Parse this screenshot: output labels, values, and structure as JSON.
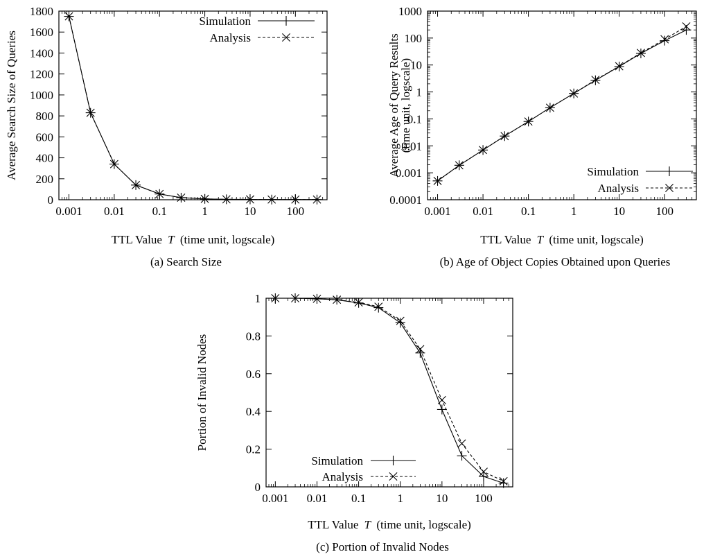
{
  "chart_data": [
    {
      "type": "line",
      "caption": "(a) Search Size",
      "xlabel": "TTL Value  T  (time unit, logscale)",
      "xlabel_parts": [
        "TTL Value ",
        "T",
        " (time unit, logscale)"
      ],
      "ylabel": "Average Search Size of Queries",
      "ylabel_lines": [
        "Average Search Size of Queries"
      ],
      "xscale": "log",
      "yscale": "linear",
      "xlim": [
        0.0006,
        500
      ],
      "ylim": [
        0,
        1800
      ],
      "xticks": [
        0.001,
        0.01,
        0.1,
        1,
        10,
        100
      ],
      "xtick_labels": [
        "0.001",
        "0.01",
        "0.1",
        "1",
        "10",
        "100"
      ],
      "yticks": [
        0,
        200,
        400,
        600,
        800,
        1000,
        1200,
        1400,
        1600,
        1800
      ],
      "ytick_labels": [
        "0",
        "200",
        "400",
        "600",
        "800",
        "1000",
        "1200",
        "1400",
        "1600",
        "1800"
      ],
      "legend_position": "top-right",
      "series": [
        {
          "name": "Simulation",
          "marker": "plus",
          "dash": "solid",
          "x": [
            0.001,
            0.003,
            0.01,
            0.03,
            0.1,
            0.3,
            1,
            3,
            10,
            30,
            100,
            300
          ],
          "y": [
            1750,
            830,
            340,
            140,
            55,
            20,
            8,
            4,
            3,
            2,
            2,
            2
          ]
        },
        {
          "name": "Analysis",
          "marker": "cross",
          "dash": "dashed",
          "x": [
            0.001,
            0.003,
            0.01,
            0.03,
            0.1,
            0.3,
            1,
            3,
            10,
            30,
            100,
            300
          ],
          "y": [
            1750,
            830,
            340,
            140,
            55,
            20,
            8,
            4,
            3,
            2,
            2,
            2
          ]
        }
      ]
    },
    {
      "type": "line",
      "caption": "(b) Age of Object Copies Obtained upon Queries",
      "xlabel": "TTL Value  T  (time unit, logscale)",
      "xlabel_parts": [
        "TTL Value ",
        "T",
        " (time unit, logscale)"
      ],
      "ylabel": "Average Age of Query Results (time unit, logscale)",
      "ylabel_lines": [
        "Average Age of Query Results",
        "(time unit, logscale)"
      ],
      "xscale": "log",
      "yscale": "log",
      "xlim": [
        0.0006,
        500
      ],
      "ylim": [
        0.0001,
        1000
      ],
      "xticks": [
        0.001,
        0.01,
        0.1,
        1,
        10,
        100
      ],
      "xtick_labels": [
        "0.001",
        "0.01",
        "0.1",
        "1",
        "10",
        "100"
      ],
      "yticks": [
        0.0001,
        0.001,
        0.01,
        0.1,
        1,
        10,
        100,
        1000
      ],
      "ytick_labels": [
        "0.0001",
        "0.001",
        "0.01",
        "0.1",
        "1",
        "10",
        "100",
        "1000"
      ],
      "legend_position": "bottom-right",
      "series": [
        {
          "name": "Simulation",
          "marker": "plus",
          "dash": "solid",
          "x": [
            0.001,
            0.003,
            0.01,
            0.03,
            0.1,
            0.3,
            1,
            3,
            10,
            30,
            100,
            300
          ],
          "y": [
            0.0005,
            0.0019,
            0.007,
            0.023,
            0.08,
            0.26,
            0.88,
            2.7,
            8.8,
            27,
            80,
            200
          ]
        },
        {
          "name": "Analysis",
          "marker": "cross",
          "dash": "dashed",
          "x": [
            0.001,
            0.003,
            0.01,
            0.03,
            0.1,
            0.3,
            1,
            3,
            10,
            30,
            100,
            300
          ],
          "y": [
            0.0005,
            0.0019,
            0.007,
            0.023,
            0.08,
            0.26,
            0.88,
            2.8,
            9,
            28,
            90,
            270
          ]
        }
      ]
    },
    {
      "type": "line",
      "caption": "(c) Portion of Invalid Nodes",
      "xlabel": "TTL Value  T  (time unit, logscale)",
      "xlabel_parts": [
        "TTL Value ",
        "T",
        " (time unit, logscale)"
      ],
      "ylabel": "Portion of Invalid Nodes",
      "ylabel_lines": [
        "Portion of Invalid Nodes"
      ],
      "xscale": "log",
      "yscale": "linear",
      "xlim": [
        0.0006,
        500
      ],
      "ylim": [
        0,
        1
      ],
      "xticks": [
        0.001,
        0.01,
        0.1,
        1,
        10,
        100
      ],
      "xtick_labels": [
        "0.001",
        "0.01",
        "0.1",
        "1",
        "10",
        "100"
      ],
      "yticks": [
        0,
        0.2,
        0.4,
        0.6,
        0.8,
        1
      ],
      "ytick_labels": [
        "0",
        "0.2",
        "0.4",
        "0.6",
        "0.8",
        "1"
      ],
      "legend_position": "bottom-left",
      "series": [
        {
          "name": "Simulation",
          "marker": "plus",
          "dash": "solid",
          "x": [
            0.001,
            0.003,
            0.01,
            0.03,
            0.1,
            0.3,
            1,
            3,
            10,
            30,
            100,
            300
          ],
          "y": [
            1.0,
            1.0,
            0.997,
            0.992,
            0.975,
            0.95,
            0.87,
            0.71,
            0.41,
            0.165,
            0.055,
            0.02
          ]
        },
        {
          "name": "Analysis",
          "marker": "cross",
          "dash": "dashed",
          "x": [
            0.001,
            0.003,
            0.01,
            0.03,
            0.1,
            0.3,
            1,
            3,
            10,
            30,
            100,
            300
          ],
          "y": [
            1.0,
            1.0,
            0.997,
            0.992,
            0.978,
            0.955,
            0.88,
            0.73,
            0.46,
            0.23,
            0.08,
            0.03
          ]
        }
      ]
    }
  ]
}
